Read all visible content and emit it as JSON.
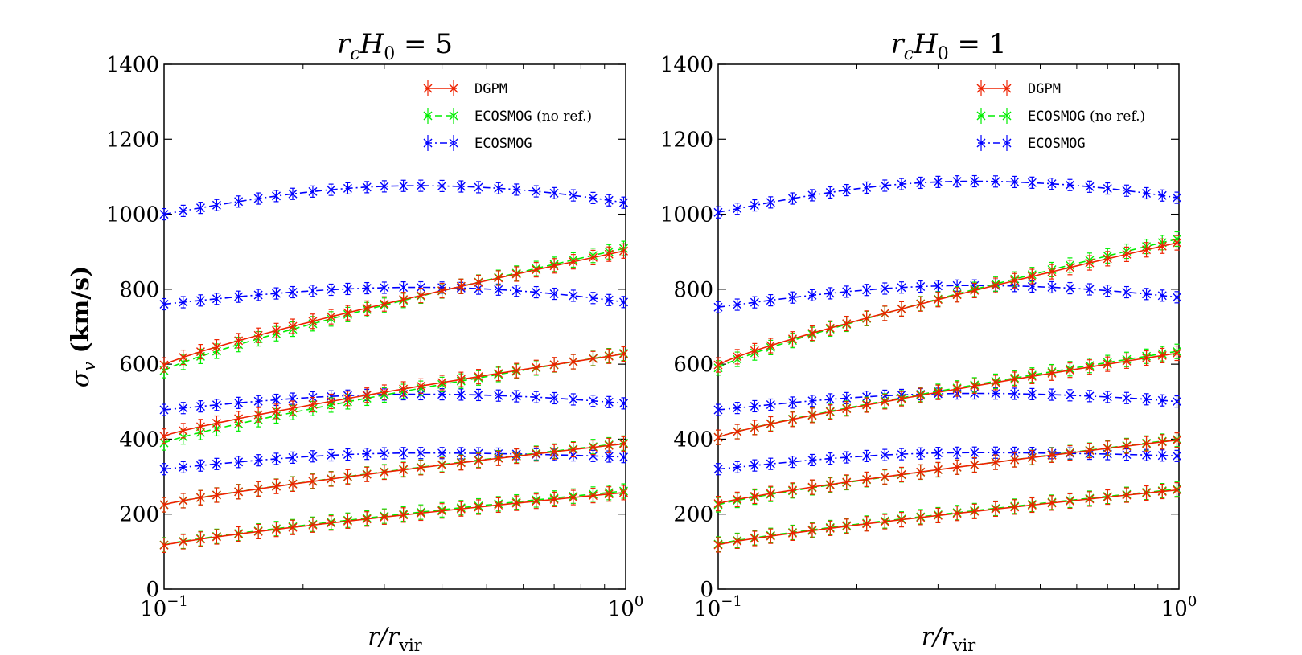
{
  "chart_data": [
    {
      "type": "line",
      "title": "r_cH_0 = 5",
      "title_parts": [
        "r",
        "c",
        "H",
        "0",
        " = 5"
      ],
      "xscale": "log",
      "xlim": [
        0.1,
        1.0
      ],
      "ylim": [
        0,
        1400
      ],
      "xlabel": "r/r_vir",
      "ylabel": "σ_v   (km/s)",
      "xticks": [
        {
          "v": 0.1,
          "base": "10",
          "exp": "−1"
        },
        {
          "v": 1.0,
          "base": "10",
          "exp": "0"
        }
      ],
      "yticks": [
        0,
        200,
        400,
        600,
        800,
        1000,
        1200,
        1400
      ],
      "legend_position": "top-right",
      "legend": [
        {
          "label": "DGPM",
          "note": ""
        },
        {
          "label": "ECOSMOG",
          "note": "(no ref.)"
        },
        {
          "label": "ECOSMOG",
          "note": ""
        }
      ],
      "series": [
        {
          "name": "ECOSMOG",
          "color": "#0000ff",
          "style": "dashdot",
          "x": [
            0.1,
            1.0
          ],
          "values": [
            [
              1000,
              1065,
              1076,
              1030
            ],
            [
              760,
              800,
              805,
              765
            ],
            [
              478,
              515,
              520,
              495
            ],
            [
              320,
              355,
              363,
              352
            ]
          ]
        },
        {
          "name": "ECOSMOG (no ref.)",
          "color": "#00ee00",
          "style": "dashed",
          "values": [
            [
              583,
              910
            ],
            [
              390,
              630
            ],
            [
              225,
              390
            ],
            [
              118,
              262
            ]
          ]
        },
        {
          "name": "DGPM",
          "color": "#ee2200",
          "style": "solid",
          "values": [
            [
              598,
              903
            ],
            [
              408,
              628
            ],
            [
              225,
              388
            ],
            [
              117,
              258
            ]
          ]
        }
      ]
    },
    {
      "type": "line",
      "title": "r_cH_0 = 1",
      "title_parts": [
        "r",
        "c",
        "H",
        "0",
        " = 1"
      ],
      "xscale": "log",
      "xlim": [
        0.1,
        1.0
      ],
      "ylim": [
        0,
        1400
      ],
      "xlabel": "r/r_vir",
      "xticks": [
        {
          "v": 0.1,
          "base": "10",
          "exp": "−1"
        },
        {
          "v": 1.0,
          "base": "10",
          "exp": "0"
        }
      ],
      "yticks": [
        0,
        200,
        400,
        600,
        800,
        1000,
        1200,
        1400
      ],
      "legend_position": "top-right",
      "legend": [
        {
          "label": "DGPM",
          "note": ""
        },
        {
          "label": "ECOSMOG",
          "note": "(no ref.)"
        },
        {
          "label": "ECOSMOG",
          "note": ""
        }
      ],
      "series": [
        {
          "name": "ECOSMOG",
          "color": "#0000ff",
          "style": "dashdot",
          "values": [
            [
              1005,
              1080,
              1088,
              1043
            ],
            [
              752,
              805,
              810,
              778
            ],
            [
              478,
              515,
              522,
              500
            ],
            [
              320,
              358,
              364,
              355
            ]
          ]
        },
        {
          "name": "ECOSMOG (no ref.)",
          "color": "#00ee00",
          "style": "dashed",
          "values": [
            [
              590,
              935
            ],
            [
              405,
              635
            ],
            [
              225,
              400
            ],
            [
              120,
              267
            ]
          ]
        },
        {
          "name": "DGPM",
          "color": "#ee2200",
          "style": "solid",
          "values": [
            [
              598,
              925
            ],
            [
              405,
              630
            ],
            [
              228,
              398
            ],
            [
              118,
              265
            ]
          ]
        }
      ]
    }
  ]
}
